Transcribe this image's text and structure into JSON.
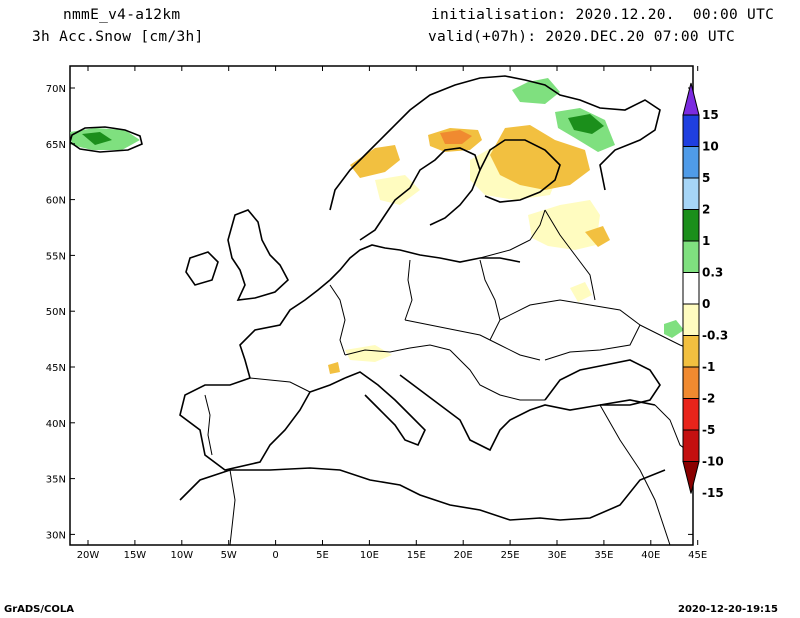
{
  "header": {
    "model": "nmmE_v4-a12km",
    "field": "3h Acc.Snow [cm/3h]",
    "init": "initialisation: 2020.12.20.  00:00 UTC",
    "valid": "valid(+07h): 2020.DEC.20 07:00 UTC"
  },
  "footer": {
    "left": "GrADS/COLA",
    "right": "2020-12-20-19:15"
  },
  "map": {
    "lon_labels": [
      "20W",
      "15W",
      "10W",
      "5W",
      "0",
      "5E",
      "10E",
      "15E",
      "20E",
      "25E",
      "30E",
      "35E",
      "40E",
      "45E"
    ],
    "lat_labels": [
      "70N",
      "65N",
      "60N",
      "55N",
      "50N",
      "45N",
      "40N",
      "35N",
      "30N"
    ]
  },
  "colorbar": {
    "labels": [
      "15",
      "10",
      "5",
      "2",
      "1",
      "0.3",
      "0",
      "-0.3",
      "-1",
      "-2",
      "-5",
      "-10",
      "-15"
    ],
    "colors": [
      "#7b2be0",
      "#1f3fe0",
      "#4f9be8",
      "#a6d5f7",
      "#1b8f1b",
      "#7fe07f",
      "#ffffff",
      "#fffcc0",
      "#f2c040",
      "#f08a30",
      "#e8241b",
      "#c41010",
      "#8a0000"
    ]
  }
}
